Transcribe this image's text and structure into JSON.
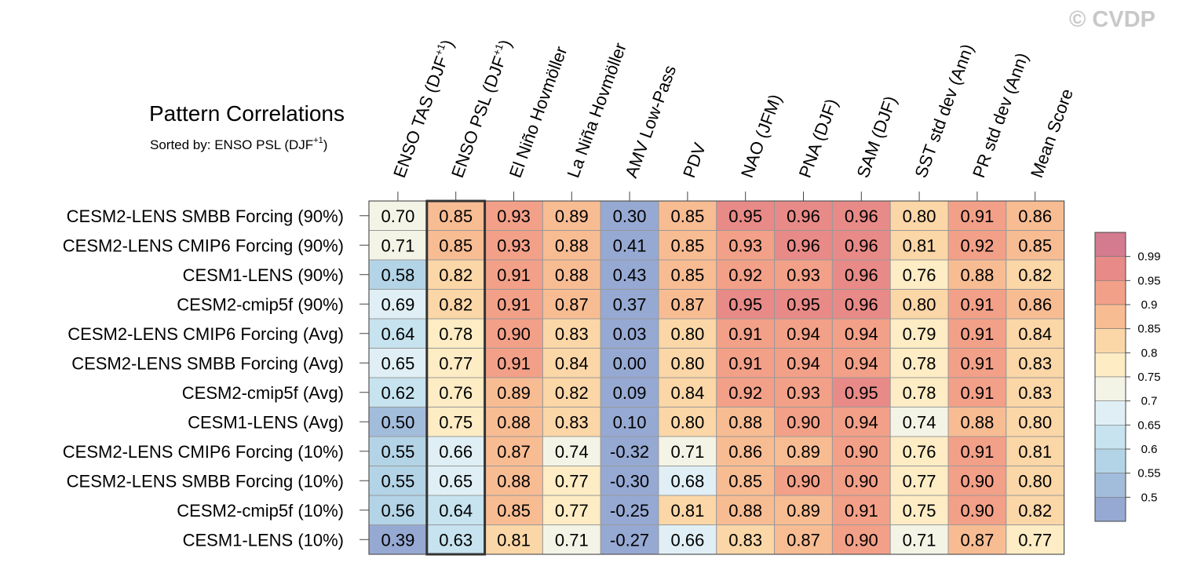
{
  "watermark": "© CVDP",
  "chart_data": {
    "type": "heatmap",
    "title": "Pattern Correlations",
    "subtitle": "Sorted by: ENSO PSL (DJF",
    "subtitle_sup": "+1",
    "subtitle_close": ")",
    "sorted_column": "ENSO PSL (DJF+1)",
    "columns": [
      {
        "label": "ENSO TAS (DJF",
        "sup": "+1",
        "close": ")"
      },
      {
        "label": "ENSO PSL (DJF",
        "sup": "+1",
        "close": ")"
      },
      {
        "label": "El Niño Hovmöller",
        "sup": "",
        "close": ""
      },
      {
        "label": "La Niña Hovmöller",
        "sup": "",
        "close": ""
      },
      {
        "label": "AMV Low-Pass",
        "sup": "",
        "close": ""
      },
      {
        "label": "PDV",
        "sup": "",
        "close": ""
      },
      {
        "label": "NAO (JFM)",
        "sup": "",
        "close": ""
      },
      {
        "label": "PNA (DJF)",
        "sup": "",
        "close": ""
      },
      {
        "label": "SAM (DJF)",
        "sup": "",
        "close": ""
      },
      {
        "label": "SST std dev (Ann)",
        "sup": "",
        "close": ""
      },
      {
        "label": "PR std dev (Ann)",
        "sup": "",
        "close": ""
      },
      {
        "label": "Mean Score",
        "sup": "",
        "close": ""
      }
    ],
    "rows": [
      "CESM2-LENS SMBB Forcing (90%)",
      "CESM2-LENS CMIP6 Forcing (90%)",
      "CESM1-LENS (90%)",
      "CESM2-cmip5f (90%)",
      "CESM2-LENS CMIP6 Forcing (Avg)",
      "CESM2-LENS SMBB Forcing (Avg)",
      "CESM2-cmip5f (Avg)",
      "CESM1-LENS (Avg)",
      "CESM2-LENS CMIP6 Forcing (10%)",
      "CESM2-LENS SMBB Forcing (10%)",
      "CESM2-cmip5f (10%)",
      "CESM1-LENS (10%)"
    ],
    "values": [
      [
        "0.70",
        "0.85",
        "0.93",
        "0.89",
        "0.30",
        "0.85",
        "0.95",
        "0.96",
        "0.96",
        "0.80",
        "0.91",
        "0.86"
      ],
      [
        "0.71",
        "0.85",
        "0.93",
        "0.88",
        "0.41",
        "0.85",
        "0.93",
        "0.96",
        "0.96",
        "0.81",
        "0.92",
        "0.85"
      ],
      [
        "0.58",
        "0.82",
        "0.91",
        "0.88",
        "0.43",
        "0.85",
        "0.92",
        "0.93",
        "0.96",
        "0.76",
        "0.88",
        "0.82"
      ],
      [
        "0.69",
        "0.82",
        "0.91",
        "0.87",
        "0.37",
        "0.87",
        "0.95",
        "0.95",
        "0.96",
        "0.80",
        "0.91",
        "0.86"
      ],
      [
        "0.64",
        "0.78",
        "0.90",
        "0.83",
        "0.03",
        "0.80",
        "0.91",
        "0.94",
        "0.94",
        "0.79",
        "0.91",
        "0.84"
      ],
      [
        "0.65",
        "0.77",
        "0.91",
        "0.84",
        "0.00",
        "0.80",
        "0.91",
        "0.94",
        "0.94",
        "0.78",
        "0.91",
        "0.83"
      ],
      [
        "0.62",
        "0.76",
        "0.89",
        "0.82",
        "0.09",
        "0.84",
        "0.92",
        "0.93",
        "0.95",
        "0.78",
        "0.91",
        "0.83"
      ],
      [
        "0.50",
        "0.75",
        "0.88",
        "0.83",
        "0.10",
        "0.80",
        "0.88",
        "0.90",
        "0.94",
        "0.74",
        "0.88",
        "0.80"
      ],
      [
        "0.55",
        "0.66",
        "0.87",
        "0.74",
        "-0.32",
        "0.71",
        "0.86",
        "0.89",
        "0.90",
        "0.76",
        "0.91",
        "0.81"
      ],
      [
        "0.55",
        "0.65",
        "0.88",
        "0.77",
        "-0.30",
        "0.68",
        "0.85",
        "0.90",
        "0.90",
        "0.77",
        "0.90",
        "0.80"
      ],
      [
        "0.56",
        "0.64",
        "0.85",
        "0.77",
        "-0.25",
        "0.81",
        "0.88",
        "0.89",
        "0.91",
        "0.75",
        "0.90",
        "0.82"
      ],
      [
        "0.39",
        "0.63",
        "0.81",
        "0.71",
        "-0.27",
        "0.66",
        "0.83",
        "0.87",
        "0.90",
        "0.71",
        "0.87",
        "0.77"
      ]
    ],
    "colorbar": {
      "labels": [
        "0.99",
        "0.95",
        "0.9",
        "0.85",
        "0.8",
        "0.75",
        "0.7",
        "0.65",
        "0.6",
        "0.55",
        "0.5"
      ],
      "bins": [
        {
          "min": 0.99,
          "color": "#d47b8f"
        },
        {
          "min": 0.95,
          "color": "#e88a87"
        },
        {
          "min": 0.9,
          "color": "#f3a088"
        },
        {
          "min": 0.85,
          "color": "#f8bc93"
        },
        {
          "min": 0.8,
          "color": "#fbd6a7"
        },
        {
          "min": 0.75,
          "color": "#fdecc4"
        },
        {
          "min": 0.7,
          "color": "#f4f4e6"
        },
        {
          "min": 0.65,
          "color": "#dfeff5"
        },
        {
          "min": 0.6,
          "color": "#c6e3ef"
        },
        {
          "min": 0.55,
          "color": "#b3d4e6"
        },
        {
          "min": 0.5,
          "color": "#a2bcdb"
        },
        {
          "min": -99,
          "color": "#96a9d3"
        }
      ]
    }
  }
}
